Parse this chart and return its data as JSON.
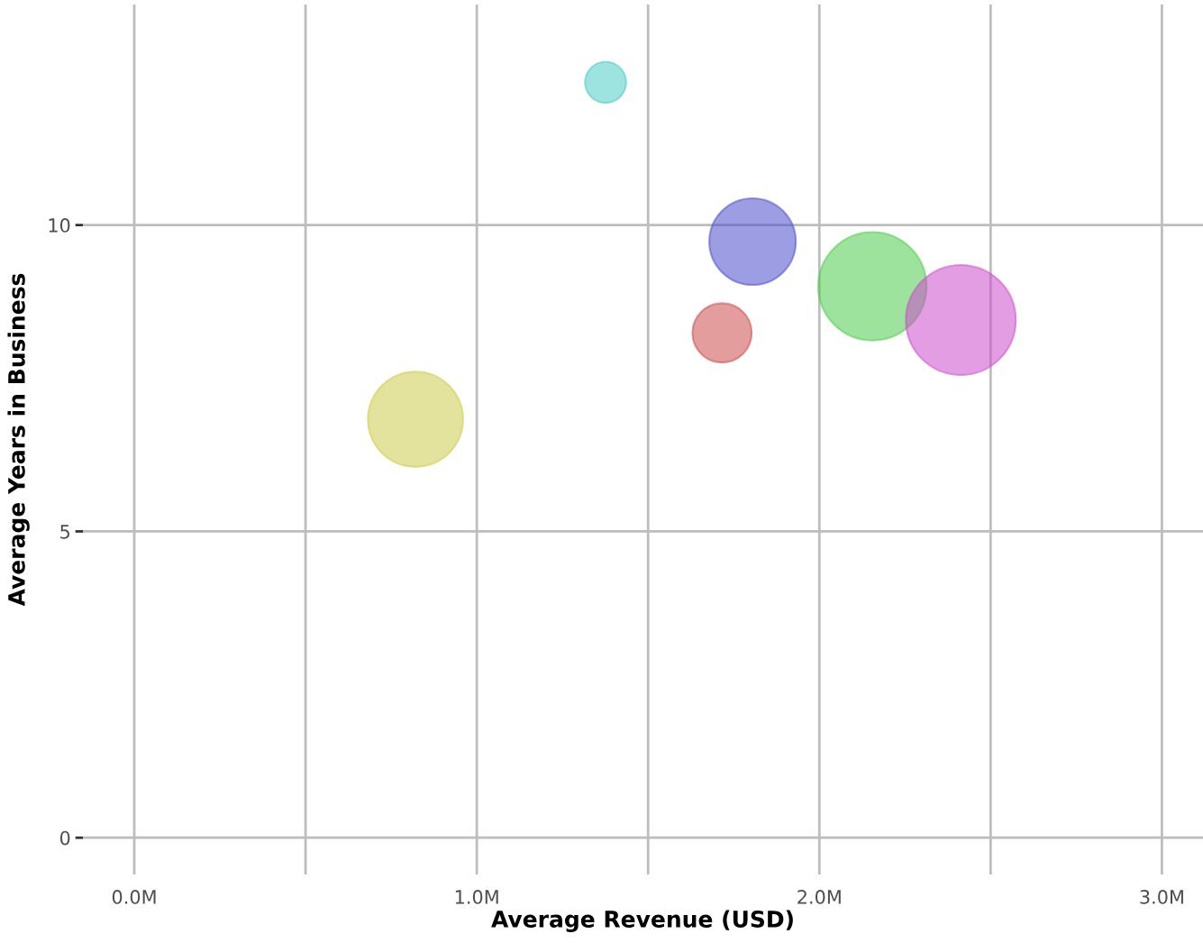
{
  "chart_data": {
    "type": "bubble",
    "xlabel": "Average Revenue (USD)",
    "ylabel": "Average Years in Business",
    "x": [
      821000,
      1376000,
      1716000,
      1805000,
      2155000,
      2413000
    ],
    "values": [
      6.83,
      12.33,
      8.24,
      9.73,
      9.0,
      8.45
    ],
    "sizes": [
      0.75,
      0.14,
      0.29,
      0.62,
      0.97,
      1
    ],
    "colors": [
      "#cccc4c",
      "#4cccc7",
      "#cc4c4c",
      "#4c4ccc",
      "#4ccc4c",
      "#cc4ccc"
    ],
    "xlim": [
      -150000,
      3120000
    ],
    "ylim": [
      -0.6,
      13.6
    ],
    "xticks": [
      {
        "value": 0,
        "label": "0.0M"
      },
      {
        "value": 500000,
        "label": null
      },
      {
        "value": 1000000,
        "label": "1.0M"
      },
      {
        "value": 1500000,
        "label": null
      },
      {
        "value": 2000000,
        "label": "2.0M"
      },
      {
        "value": 2500000,
        "label": null
      },
      {
        "value": 3000000,
        "label": "3.0M"
      }
    ],
    "yticks": [
      0,
      5,
      10
    ],
    "grid": true,
    "marker": "circle"
  }
}
